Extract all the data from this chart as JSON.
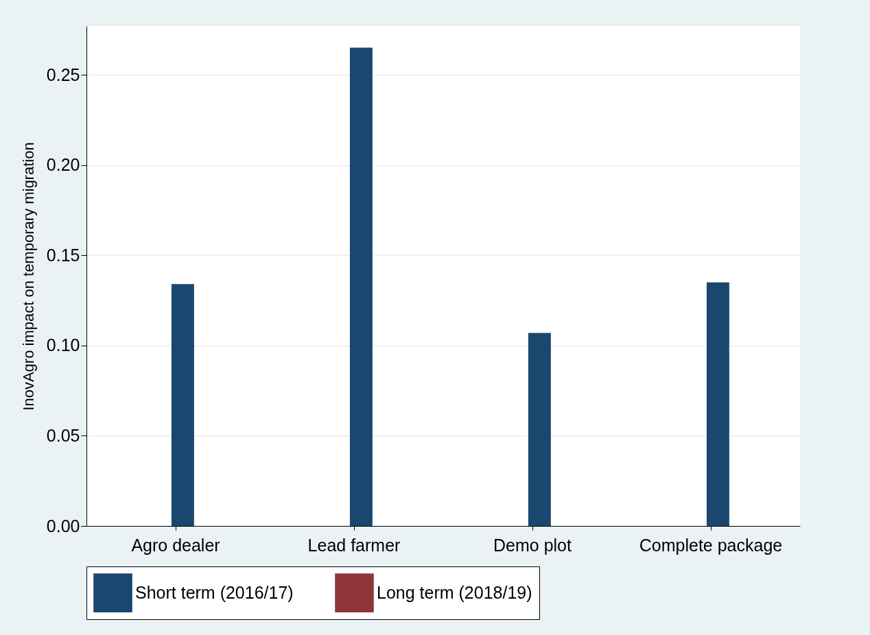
{
  "chart_data": {
    "type": "bar",
    "ylabel": "InovAgro impact on temporary migration",
    "categories": [
      "Agro dealer",
      "Lead farmer",
      "Demo plot",
      "Complete package"
    ],
    "series": [
      {
        "name": "Short term (2016/17)",
        "color": "#1a476f",
        "values": [
          0.134,
          0.265,
          0.107,
          0.135
        ]
      },
      {
        "name": "Long term (2018/19)",
        "color": "#90353b",
        "values": [
          null,
          null,
          null,
          null
        ]
      }
    ],
    "ylim": [
      0,
      0.277
    ],
    "yticks": [
      {
        "value": 0,
        "label": "0.00"
      },
      {
        "value": 0.05,
        "label": "0.05"
      },
      {
        "value": 0.1,
        "label": "0.10"
      },
      {
        "value": 0.15,
        "label": "0.15"
      },
      {
        "value": 0.2,
        "label": "0.20"
      },
      {
        "value": 0.25,
        "label": "0.25"
      }
    ],
    "grid": "y",
    "legend": "bottom"
  }
}
